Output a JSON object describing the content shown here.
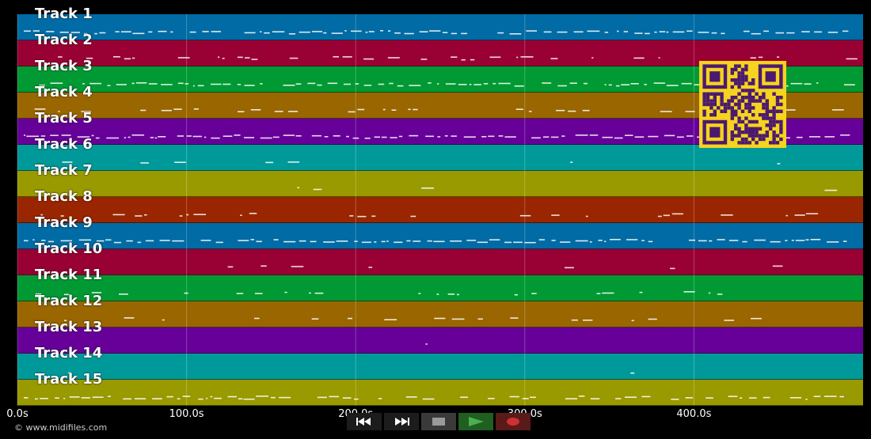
{
  "tracks": [
    {
      "label": "Track 1",
      "color": "#006ba4"
    },
    {
      "label": "Track 2",
      "color": "#990033"
    },
    {
      "label": "Track 3",
      "color": "#009933"
    },
    {
      "label": "Track 4",
      "color": "#996600"
    },
    {
      "label": "Track 5",
      "color": "#660099"
    },
    {
      "label": "Track 6",
      "color": "#009999"
    },
    {
      "label": "Track 7",
      "color": "#999900"
    },
    {
      "label": "Track 8",
      "color": "#992600"
    },
    {
      "label": "Track 9",
      "color": "#006ba4"
    },
    {
      "label": "Track 10",
      "color": "#990033"
    },
    {
      "label": "Track 11",
      "color": "#009933"
    },
    {
      "label": "Track 12",
      "color": "#996600"
    },
    {
      "label": "Track 13",
      "color": "#660099"
    },
    {
      "label": "Track 14",
      "color": "#009999"
    },
    {
      "label": "Track 15",
      "color": "#999900"
    }
  ],
  "time_axis": {
    "ticks": [
      "0.0s",
      "100.0s",
      "200.0s",
      "300.0s",
      "400.0s"
    ],
    "max_seconds": 500
  },
  "copyright": "© www.midifiles.com",
  "transport": {
    "buttons": [
      {
        "name": "rewind-button",
        "icon": "rewind-icon"
      },
      {
        "name": "fast-forward-button",
        "icon": "fast-forward-icon"
      },
      {
        "name": "stop-button",
        "icon": "stop-icon"
      },
      {
        "name": "play-button",
        "icon": "play-icon"
      },
      {
        "name": "record-button",
        "icon": "record-icon"
      }
    ],
    "colors": {
      "play": "#3c9c3c",
      "record": "#c03030",
      "stop": "#9a9a9a"
    }
  }
}
